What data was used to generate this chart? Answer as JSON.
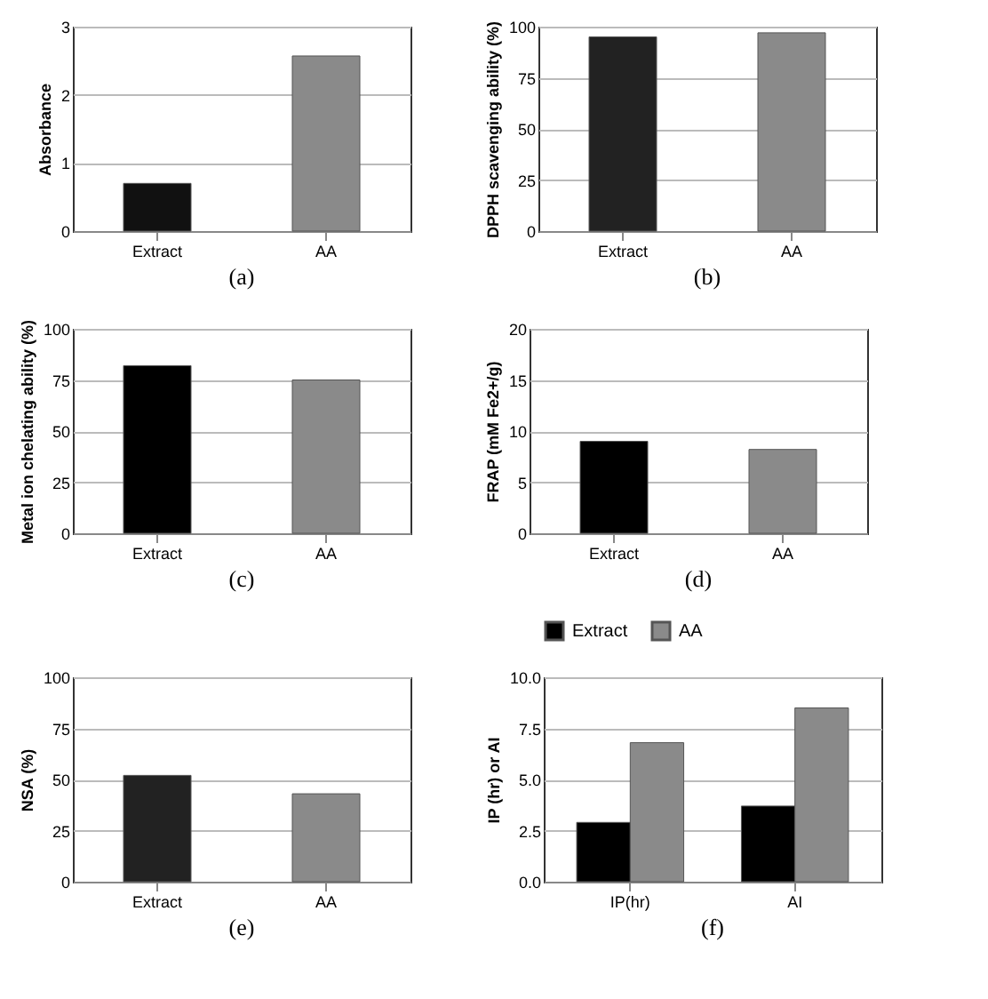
{
  "chart_data": [
    {
      "type": "bar",
      "ylabel": "Absorbance",
      "categories": [
        "Extract",
        "AA"
      ],
      "values": [
        0.7,
        2.57
      ],
      "colors": [
        "#111111",
        "#8a8a8a"
      ],
      "ylim": [
        0,
        3
      ],
      "yticks": [
        0,
        1,
        2,
        3
      ],
      "grid": "y",
      "annotations": [
        "(a)"
      ]
    },
    {
      "type": "bar",
      "ylabel": "DPPH scavenging ability (%)",
      "categories": [
        "Extract",
        "AA"
      ],
      "values": [
        95,
        97
      ],
      "colors": [
        "#222222",
        "#8a8a8a"
      ],
      "ylim": [
        0,
        100
      ],
      "yticks": [
        0,
        25,
        50,
        75,
        100
      ],
      "grid": "y",
      "annotations": [
        "(b)"
      ]
    },
    {
      "type": "bar",
      "ylabel": "Metal ion chelating ability (%)",
      "categories": [
        "Extract",
        "AA"
      ],
      "values": [
        82,
        75
      ],
      "colors": [
        "#000000",
        "#8a8a8a"
      ],
      "ylim": [
        0,
        100
      ],
      "yticks": [
        0,
        25,
        50,
        75,
        100
      ],
      "grid": "y",
      "annotations": [
        "(c)"
      ]
    },
    {
      "type": "bar",
      "ylabel": "FRAP  (mM Fe2+/g)",
      "categories": [
        "Extract",
        "AA"
      ],
      "values": [
        9,
        8.2
      ],
      "colors": [
        "#000000",
        "#8a8a8a"
      ],
      "ylim": [
        0,
        20
      ],
      "yticks": [
        0,
        5,
        10,
        15,
        20
      ],
      "grid": "y",
      "annotations": [
        "(d)"
      ]
    },
    {
      "type": "bar",
      "ylabel": "NSA  (%)",
      "categories": [
        "Extract",
        "AA"
      ],
      "values": [
        52,
        43
      ],
      "colors": [
        "#222222",
        "#8a8a8a"
      ],
      "ylim": [
        0,
        100
      ],
      "yticks": [
        0,
        25,
        50,
        75,
        100
      ],
      "grid": "y",
      "annotations": [
        "(e)"
      ]
    },
    {
      "type": "bar",
      "ylabel": "IP (hr)  or  AI",
      "categories": [
        "IP(hr)",
        "AI"
      ],
      "series": [
        {
          "name": "Extract",
          "color": "#000000",
          "values": [
            2.9,
            3.7
          ]
        },
        {
          "name": "AA",
          "color": "#8a8a8a",
          "values": [
            6.8,
            8.5
          ]
        }
      ],
      "ylim": [
        0,
        10
      ],
      "yticks": [
        {
          "value": 0,
          "label": "0.0"
        },
        {
          "value": 2.5,
          "label": "2.5"
        },
        {
          "value": 5,
          "label": "5.0"
        },
        {
          "value": 7.5,
          "label": "7.5"
        },
        {
          "value": 10,
          "label": "10.0"
        }
      ],
      "grid": "y",
      "legend": "top",
      "annotations": [
        "(f)"
      ]
    }
  ]
}
